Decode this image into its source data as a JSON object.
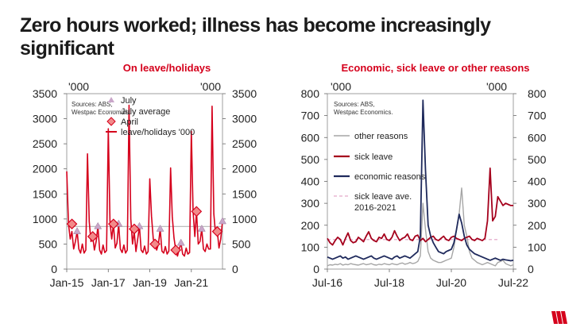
{
  "title": "Zero hours worked; illness has become increasingly significant",
  "brand_color": "#d5001c",
  "chart_data": [
    {
      "type": "line",
      "title": "On leave/holidays",
      "unit_left": "'000",
      "unit_right": "'000",
      "source": [
        "Sources: ABS,",
        "Westpac Economics."
      ],
      "ylim": [
        0,
        3500
      ],
      "yticks": [
        "0",
        "500",
        "1000",
        "1500",
        "2000",
        "2500",
        "3000",
        "3500"
      ],
      "xticks": [
        "Jan-15",
        "Jan-17",
        "Jan-19",
        "Jan-21"
      ],
      "x_range": [
        "2015-01",
        "2022-07"
      ],
      "legend": [
        "July",
        "July average",
        "April",
        "leave/holidays '000"
      ],
      "colors": {
        "line": "#d5001c",
        "july": "#c9a6c9",
        "avg": "#b5b5b5",
        "april": "#d5001c"
      },
      "july_average": 850,
      "series": [
        {
          "name": "leave/holidays '000",
          "monthly": {
            "2015": [
              1950,
              900,
              600,
              750,
              400,
              550,
              750,
              400,
              320,
              500,
              320,
              380
            ],
            "2016": [
              2300,
              950,
              550,
              650,
              380,
              550,
              850,
              380,
              300,
              480,
              330,
              370
            ],
            "2017": [
              2800,
              950,
              600,
              900,
              420,
              520,
              900,
              400,
              330,
              480,
              320,
              380
            ],
            "2018": [
              3270,
              1000,
              500,
              750,
              350,
              600,
              850,
              380,
              330,
              460,
              300,
              350
            ],
            "2019": [
              1800,
              1050,
              600,
              500,
              380,
              500,
              800,
              360,
              320,
              450,
              300,
              360
            ],
            "2020": [
              2020,
              1050,
              620,
              380,
              260,
              400,
              520,
              300,
              260,
              420,
              300,
              330
            ],
            "2021": [
              2750,
              1150,
              650,
              1150,
              500,
              550,
              800,
              400,
              350,
              500,
              400,
              400
            ],
            "2022": [
              3250,
              1100,
              700,
              750,
              420,
              600,
              950
            ]
          }
        }
      ],
      "july_points": [
        {
          "x": "2015-07",
          "y": 750
        },
        {
          "x": "2016-07",
          "y": 850
        },
        {
          "x": "2017-07",
          "y": 900
        },
        {
          "x": "2018-07",
          "y": 850
        },
        {
          "x": "2019-07",
          "y": 800
        },
        {
          "x": "2020-07",
          "y": 520
        },
        {
          "x": "2021-07",
          "y": 800
        },
        {
          "x": "2022-07",
          "y": 950
        }
      ],
      "april_points": [
        {
          "x": "2015-04",
          "y": 900
        },
        {
          "x": "2016-04",
          "y": 650
        },
        {
          "x": "2017-04",
          "y": 900
        },
        {
          "x": "2018-04",
          "y": 800
        },
        {
          "x": "2019-04",
          "y": 500
        },
        {
          "x": "2020-04",
          "y": 380
        },
        {
          "x": "2021-04",
          "y": 1150
        },
        {
          "x": "2022-04",
          "y": 750
        }
      ]
    },
    {
      "type": "line",
      "title": "Economic, sick leave or other reasons",
      "unit_left": "'000",
      "unit_right": "'000",
      "source": [
        "Sources: ABS,",
        "Westpac Economics."
      ],
      "ylim": [
        0,
        800
      ],
      "yticks": [
        "0",
        "100",
        "200",
        "300",
        "400",
        "500",
        "600",
        "700",
        "800"
      ],
      "xticks": [
        "Jul-16",
        "Jul-18",
        "Jul-20",
        "Jul-22"
      ],
      "x_range": [
        "2016-07",
        "2022-07"
      ],
      "legend": [
        "other reasons",
        "sick leave",
        "economic reasons",
        "sick leave ave. 2016-2021"
      ],
      "colors": {
        "other": "#a6a6a6",
        "sick": "#a5001c",
        "economic": "#1f2a5c",
        "avg": "#e8b6d2"
      },
      "sick_leave_average": 135,
      "series": [
        {
          "name": "other reasons",
          "values": [
            15,
            20,
            18,
            22,
            20,
            25,
            18,
            22,
            20,
            25,
            22,
            20,
            18,
            22,
            25,
            20,
            22,
            25,
            20,
            18,
            22,
            20,
            25,
            22,
            20,
            25,
            22,
            20,
            25,
            28,
            22,
            25,
            30,
            25,
            28,
            35,
            60,
            300,
            180,
            80,
            50,
            40,
            35,
            30,
            30,
            35,
            40,
            45,
            50,
            100,
            180,
            250,
            370,
            200,
            150,
            80,
            50,
            40,
            30,
            25,
            20,
            25,
            30,
            25,
            20,
            15,
            30,
            35,
            40,
            25,
            20,
            15,
            20
          ]
        },
        {
          "name": "sick leave",
          "values": [
            140,
            120,
            110,
            130,
            145,
            135,
            110,
            140,
            165,
            130,
            120,
            125,
            145,
            135,
            125,
            150,
            170,
            140,
            130,
            125,
            145,
            140,
            160,
            135,
            130,
            145,
            175,
            150,
            130,
            140,
            145,
            160,
            135,
            130,
            150,
            155,
            130,
            140,
            125,
            135,
            145,
            150,
            135,
            130,
            140,
            150,
            135,
            130,
            145,
            150,
            140,
            135,
            130,
            140,
            145,
            150,
            135,
            130,
            140,
            135,
            130,
            140,
            220,
            460,
            220,
            240,
            330,
            310,
            290,
            300,
            295,
            290,
            290
          ]
        },
        {
          "name": "economic reasons",
          "values": [
            55,
            50,
            45,
            50,
            55,
            60,
            50,
            55,
            45,
            50,
            55,
            60,
            55,
            50,
            45,
            50,
            55,
            60,
            50,
            45,
            50,
            55,
            60,
            55,
            50,
            45,
            55,
            60,
            50,
            55,
            60,
            55,
            50,
            60,
            70,
            80,
            150,
            770,
            450,
            200,
            150,
            120,
            100,
            80,
            75,
            70,
            80,
            85,
            90,
            120,
            180,
            250,
            210,
            150,
            110,
            90,
            80,
            70,
            65,
            60,
            55,
            50,
            45,
            40,
            45,
            50,
            45,
            40,
            45,
            42,
            40,
            38,
            40
          ]
        }
      ]
    }
  ]
}
